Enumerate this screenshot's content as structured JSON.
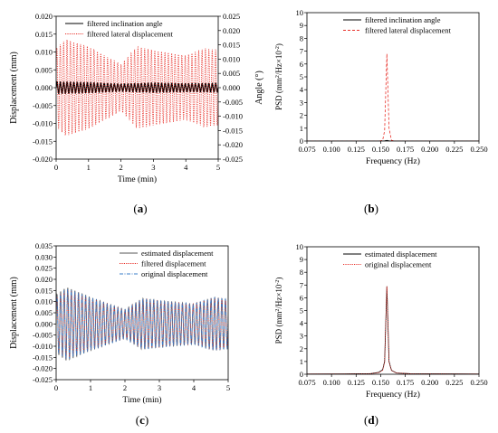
{
  "chart_data": [
    {
      "panel": "a",
      "type": "line",
      "xlabel": "Time (min)",
      "ylabel": "Displacement (mm)",
      "y2label": "Angle (°)",
      "xlim": [
        0,
        5
      ],
      "ylim": [
        -0.02,
        0.02
      ],
      "y2lim": [
        -0.025,
        0.025
      ],
      "xticks": [
        "0",
        "1",
        "2",
        "3",
        "4",
        "5"
      ],
      "yticks": [
        "-0.020",
        "-0.015",
        "-0.010",
        "-0.005",
        "0.000",
        "0.005",
        "0.010",
        "0.015",
        "0.020"
      ],
      "y2ticks": [
        "-0.025",
        "-0.020",
        "-0.015",
        "-0.010",
        "-0.005",
        "0.000",
        "0.005",
        "0.010",
        "0.015",
        "0.020",
        "0.025"
      ],
      "series": [
        {
          "name": "filtered inclination angle",
          "color": "#000000",
          "style": "solid",
          "frequency_hz": 0.16,
          "envelope": {
            "t": [
              0,
              1,
              2,
              3,
              4,
              5
            ],
            "amp": [
              0.0016,
              0.0014,
              0.001,
              0.0013,
              0.0011,
              0.0012
            ]
          }
        },
        {
          "name": "filtered lateral displacement",
          "color": "#e8312a",
          "style": "dotted",
          "frequency_hz": 0.16,
          "envelope": {
            "t": [
              0,
              0.3,
              1,
              1.7,
              2,
              2.5,
              3,
              4,
              4.6,
              5
            ],
            "amp": [
              0.011,
              0.0135,
              0.0115,
              0.008,
              0.0065,
              0.0115,
              0.0105,
              0.009,
              0.011,
              0.0105
            ]
          }
        }
      ],
      "legend": "top"
    },
    {
      "panel": "b",
      "type": "line",
      "xlabel": "Frequency (Hz)",
      "ylabel": "PSD (mm²/Hz×10⁻²)",
      "xlim": [
        0.075,
        0.25
      ],
      "ylim": [
        0,
        10
      ],
      "xticks": [
        "0.075",
        "0.100",
        "0.125",
        "0.150",
        "0.175",
        "0.200",
        "0.225",
        "0.250"
      ],
      "yticks": [
        "0",
        "1",
        "2",
        "3",
        "4",
        "5",
        "6",
        "7",
        "8",
        "9",
        "10"
      ],
      "series": [
        {
          "name": "filtered inclination angle",
          "color": "#000000",
          "style": "solid",
          "x": [
            0.075,
            0.15,
            0.154,
            0.1563,
            0.1585,
            0.161,
            0.165,
            0.25
          ],
          "y": [
            0,
            0,
            0.02,
            0.05,
            0.02,
            0,
            0,
            0
          ]
        },
        {
          "name": "filtered lateral displacement",
          "color": "#e8312a",
          "style": "dashed",
          "x": [
            0.075,
            0.148,
            0.152,
            0.154,
            0.1563,
            0.1585,
            0.161,
            0.165,
            0.25
          ],
          "y": [
            0,
            0,
            0.05,
            0.8,
            6.8,
            1.0,
            0.05,
            0,
            0
          ]
        }
      ],
      "legend": "top-right"
    },
    {
      "panel": "c",
      "type": "line",
      "xlabel": "Time (min)",
      "ylabel": "Displacement (mm)",
      "xlim": [
        0,
        5
      ],
      "ylim": [
        -0.025,
        0.035
      ],
      "xticks": [
        "0",
        "1",
        "2",
        "3",
        "4",
        "5"
      ],
      "yticks": [
        "-0.025",
        "-0.020",
        "-0.015",
        "-0.010",
        "-0.005",
        "0.000",
        "0.005",
        "0.010",
        "0.015",
        "0.020",
        "0.025",
        "0.030",
        "0.035"
      ],
      "series": [
        {
          "name": "estimated displacement",
          "color": "#555555",
          "style": "solid",
          "frequency_hz": 0.16,
          "envelope": {
            "t": [
              0,
              0.3,
              1,
              1.7,
              2,
              2.5,
              3,
              4,
              4.6,
              5
            ],
            "amp": [
              0.013,
              0.0165,
              0.012,
              0.008,
              0.0065,
              0.0115,
              0.0105,
              0.009,
              0.012,
              0.011
            ]
          }
        },
        {
          "name": "filtered displacement",
          "color": "#e8312a",
          "style": "dotted",
          "frequency_hz": 0.16,
          "envelope": {
            "t": [
              0,
              0.3,
              1,
              1.7,
              2,
              2.5,
              3,
              4,
              4.6,
              5
            ],
            "amp": [
              0.012,
              0.0155,
              0.0115,
              0.0078,
              0.0063,
              0.0112,
              0.0102,
              0.0088,
              0.0118,
              0.0108
            ]
          }
        },
        {
          "name": "original displacement",
          "color": "#3a7dc9",
          "style": "dashdot",
          "frequency_hz": 0.16,
          "envelope": {
            "t": [
              0,
              0.3,
              1,
              1.7,
              2,
              2.5,
              3,
              4,
              4.6,
              5
            ],
            "amp": [
              0.012,
              0.016,
              0.0118,
              0.008,
              0.0064,
              0.0114,
              0.0104,
              0.009,
              0.012,
              0.011
            ]
          }
        }
      ],
      "legend": "top-right"
    },
    {
      "panel": "d",
      "type": "line",
      "xlabel": "Frequency (Hz)",
      "ylabel": "PSD (mm²/Hz×10⁻²)",
      "xlim": [
        0.075,
        0.25
      ],
      "ylim": [
        0,
        10
      ],
      "xticks": [
        "0.075",
        "0.100",
        "0.125",
        "0.150",
        "0.175",
        "0.200",
        "0.225",
        "0.250"
      ],
      "yticks": [
        "0",
        "1",
        "2",
        "3",
        "4",
        "5",
        "6",
        "7",
        "8",
        "9",
        "10"
      ],
      "series": [
        {
          "name": "estimated displacement",
          "color": "#000000",
          "style": "solid",
          "x": [
            0.075,
            0.12,
            0.14,
            0.148,
            0.152,
            0.154,
            0.1563,
            0.1585,
            0.161,
            0.166,
            0.18,
            0.25
          ],
          "y": [
            0.02,
            0.03,
            0.05,
            0.15,
            0.35,
            1.0,
            6.9,
            1.0,
            0.3,
            0.1,
            0.04,
            0.02
          ]
        },
        {
          "name": "original displacement",
          "color": "#e8312a",
          "style": "dotted",
          "x": [
            0.075,
            0.12,
            0.14,
            0.148,
            0.152,
            0.154,
            0.1563,
            0.1585,
            0.161,
            0.166,
            0.18,
            0.25
          ],
          "y": [
            0.02,
            0.03,
            0.05,
            0.12,
            0.3,
            0.95,
            6.9,
            0.95,
            0.3,
            0.1,
            0.04,
            0.02
          ]
        }
      ],
      "legend": "top-right"
    }
  ],
  "captions": {
    "a": "(a)",
    "b": "(b)",
    "c": "(c)",
    "d": "(d)"
  },
  "panel_letters": {
    "a": "a",
    "b": "b",
    "c": "c",
    "d": "d"
  }
}
